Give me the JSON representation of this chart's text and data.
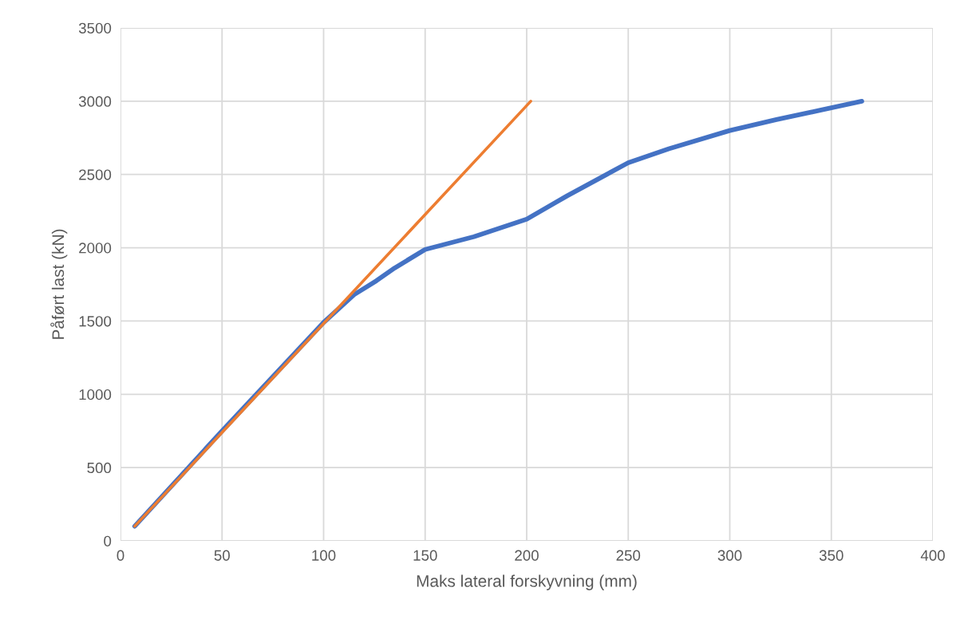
{
  "chart_data": {
    "type": "line",
    "xlabel": "Maks lateral forskyvning (mm)",
    "ylabel": "Påført last (kN)",
    "xlim": [
      0,
      400
    ],
    "xticks": [
      0,
      50,
      100,
      150,
      200,
      250,
      300,
      350,
      400
    ],
    "ylim": [
      0,
      3500
    ],
    "yticks": [
      0,
      500,
      1000,
      1500,
      2000,
      2500,
      3000,
      3500
    ],
    "grid": true,
    "marker": "none",
    "line_style": "solid",
    "series": [
      {
        "color": "#4472c4",
        "x": [
          7,
          50,
          100,
          115,
          126,
          135,
          150,
          174,
          200,
          220,
          250,
          270,
          300,
          323,
          345,
          365
        ],
        "values": [
          100,
          750,
          1490,
          1680,
          1775,
          1862,
          1988,
          2075,
          2195,
          2355,
          2580,
          2675,
          2800,
          2875,
          2940,
          3000
        ]
      },
      {
        "color": "#ed7d31",
        "x": [
          7,
          202
        ],
        "values": [
          100,
          3000
        ]
      }
    ]
  }
}
